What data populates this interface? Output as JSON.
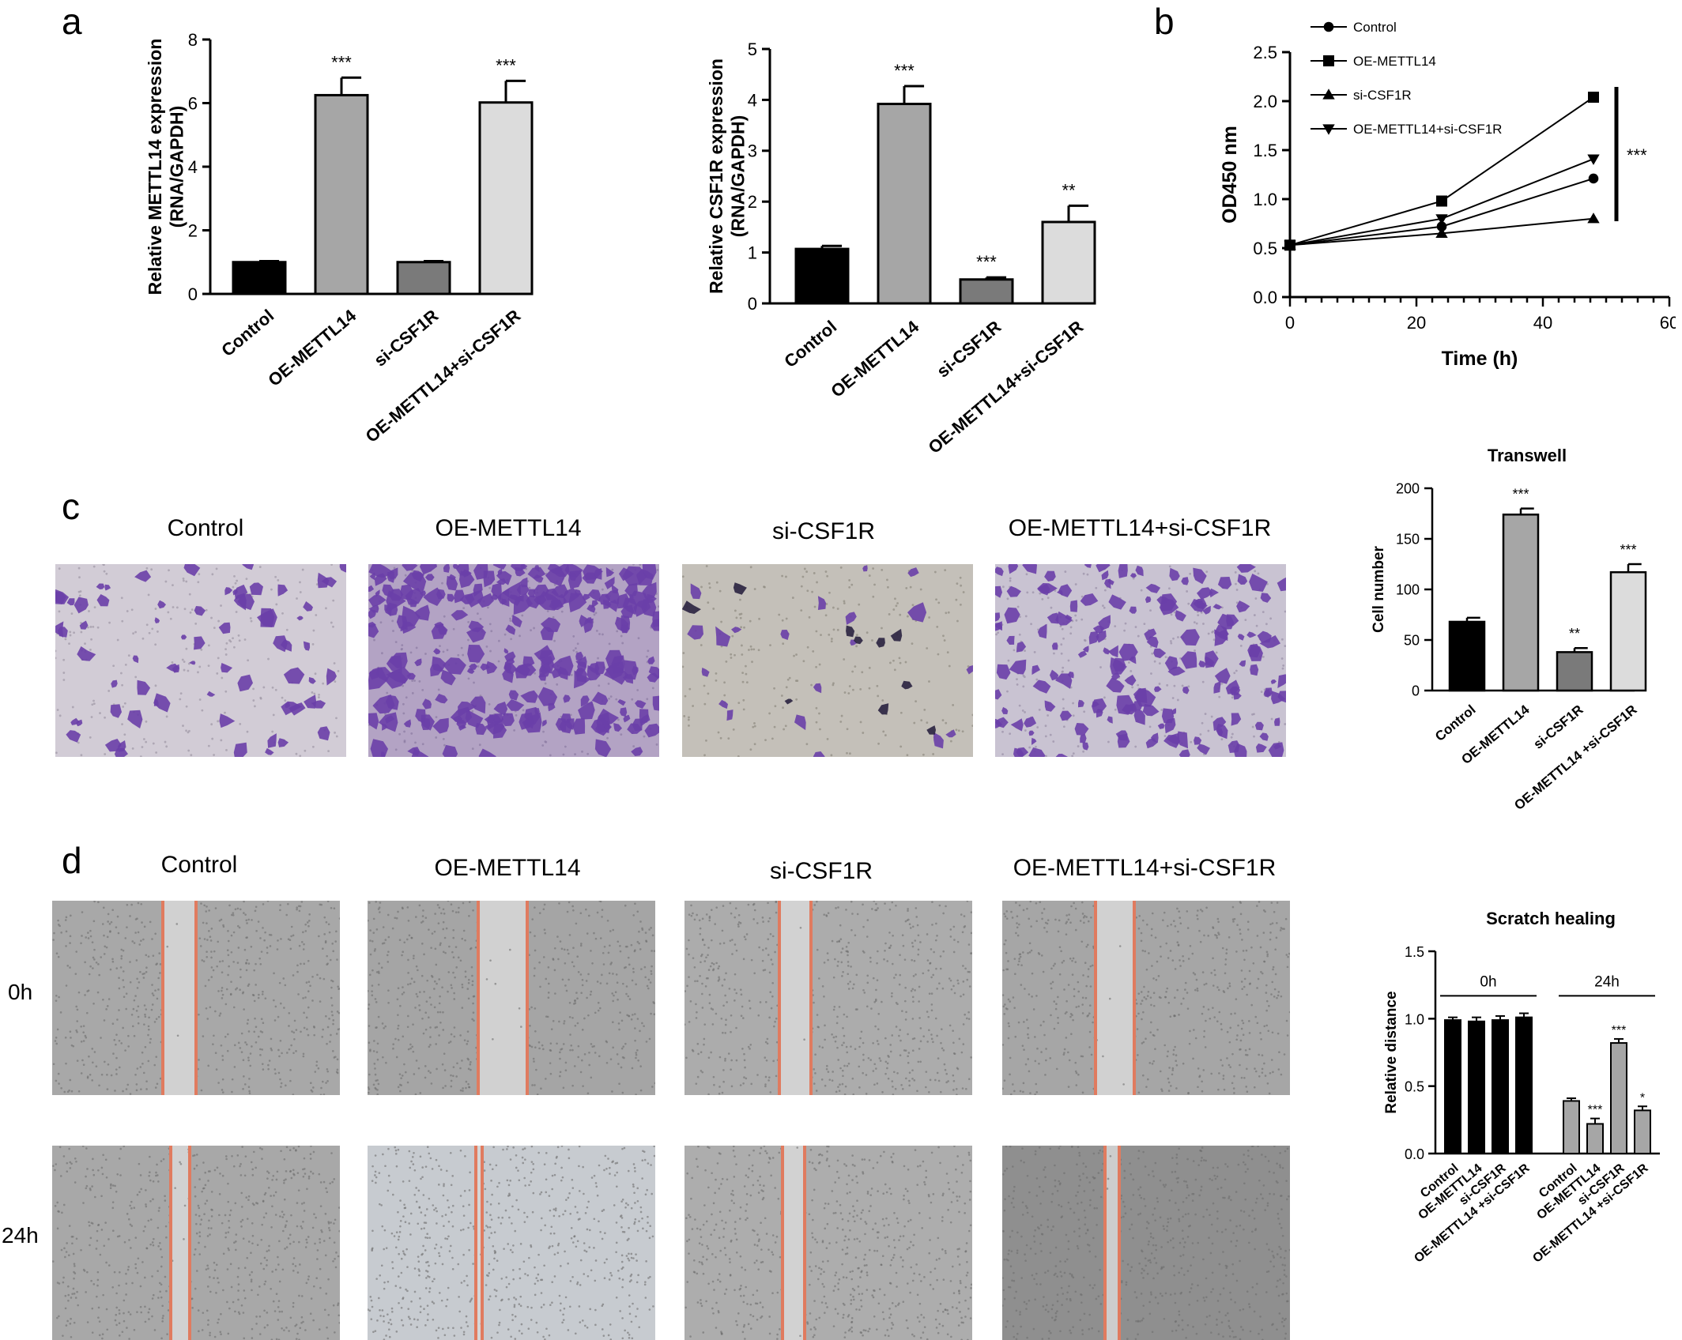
{
  "panels": {
    "a": "a",
    "b": "b",
    "c": "c",
    "d": "d"
  },
  "colors": {
    "control": "#000000",
    "oe": "#a6a6a6",
    "si": "#7a7a7a",
    "combo": "#dcdcdc",
    "scratch24": "#a6a6a6",
    "crystal_violet": "#6a3fa8",
    "scratch_line": "#e07b5f"
  },
  "chart_data": [
    {
      "id": "a1",
      "type": "bar",
      "ylabel": "Relative METTL14 expression",
      "ylabel2": "(RNA/GAPDH)",
      "categories": [
        "Control",
        "OE-METTL14",
        "si-CSF1R",
        "OE-METTL14+si-CSF1R"
      ],
      "values": [
        1.0,
        6.25,
        1.0,
        6.02
      ],
      "errors": [
        0.03,
        0.55,
        0.03,
        0.68
      ],
      "significance": [
        "",
        "***",
        "",
        "***"
      ],
      "ylim": [
        0,
        8
      ],
      "yticks": [
        "0",
        "2",
        "4",
        "6",
        "8"
      ]
    },
    {
      "id": "a2",
      "type": "bar",
      "ylabel": "Relative CSF1R expression",
      "ylabel2": "(RNA/GAPDH)",
      "categories": [
        "Control",
        "OE-METTL14",
        "si-CSF1R",
        "OE-METTL14+si-CSF1R"
      ],
      "values": [
        1.07,
        3.92,
        0.47,
        1.6
      ],
      "errors": [
        0.06,
        0.35,
        0.04,
        0.32
      ],
      "significance": [
        "",
        "***",
        "***",
        "**"
      ],
      "ylim": [
        0,
        5
      ],
      "yticks": [
        "0",
        "1",
        "2",
        "3",
        "4",
        "5"
      ]
    },
    {
      "id": "b",
      "type": "line",
      "xlabel": "Time (h)",
      "ylabel": "OD450 nm",
      "x": [
        0,
        24,
        48
      ],
      "xlim": [
        0,
        60
      ],
      "ylim": [
        0,
        2.5
      ],
      "xticks": [
        "0",
        "20",
        "40",
        "60"
      ],
      "yticks": [
        "0.0",
        "0.5",
        "1.0",
        "1.5",
        "2.0",
        "2.5"
      ],
      "series": [
        {
          "name": "Control",
          "marker": "circle",
          "values": [
            0.53,
            0.72,
            1.21
          ]
        },
        {
          "name": "OE-METTL14",
          "marker": "square",
          "values": [
            0.53,
            0.98,
            2.04
          ]
        },
        {
          "name": "si-CSF1R",
          "marker": "triangle-up",
          "values": [
            0.53,
            0.65,
            0.8
          ]
        },
        {
          "name": "OE-METTL14+si-CSF1R",
          "marker": "triangle-down",
          "values": [
            0.53,
            0.8,
            1.41
          ]
        }
      ],
      "significance": "***",
      "legend": "top-left"
    },
    {
      "id": "c",
      "type": "bar",
      "title": "Transwell",
      "ylabel": "Cell number",
      "categories": [
        "Control",
        "OE-METTL14",
        "si-CSF1R",
        "OE-METTL14 +si-CSF1R"
      ],
      "values": [
        68,
        174,
        38,
        117
      ],
      "errors": [
        4,
        6,
        4,
        8
      ],
      "significance": [
        "",
        "***",
        "**",
        "***"
      ],
      "ylim": [
        0,
        200
      ],
      "yticks": [
        "0",
        "50",
        "100",
        "150",
        "200"
      ]
    },
    {
      "id": "d",
      "type": "bar",
      "title": "Scratch healing",
      "ylabel": "Relative distance",
      "groups": [
        "0h",
        "24h"
      ],
      "categories": [
        "Control",
        "OE-METTL14",
        "si-CSF1R",
        "OE-METTL14 +si-CSF1R"
      ],
      "series": [
        {
          "name": "0h",
          "values": [
            0.99,
            0.98,
            0.99,
            1.01
          ],
          "errors": [
            0.02,
            0.03,
            0.03,
            0.03
          ],
          "significance": [
            "",
            "",
            "",
            ""
          ]
        },
        {
          "name": "24h",
          "values": [
            0.39,
            0.22,
            0.82,
            0.32
          ],
          "errors": [
            0.02,
            0.04,
            0.03,
            0.03
          ],
          "significance": [
            "",
            "***",
            "***",
            "*"
          ]
        }
      ],
      "ylim": [
        0,
        1.5
      ],
      "yticks": [
        "0.0",
        "0.5",
        "1.0",
        "1.5"
      ]
    }
  ],
  "panel_c": {
    "labels": [
      "Control",
      "OE-METTL14",
      "si-CSF1R",
      "OE-METTL14+si-CSF1R"
    ]
  },
  "panel_d": {
    "labels": [
      "Control",
      "OE-METTL14",
      "si-CSF1R",
      "OE-METTL14+si-CSF1R"
    ],
    "rows": [
      "0h",
      "24h"
    ]
  }
}
